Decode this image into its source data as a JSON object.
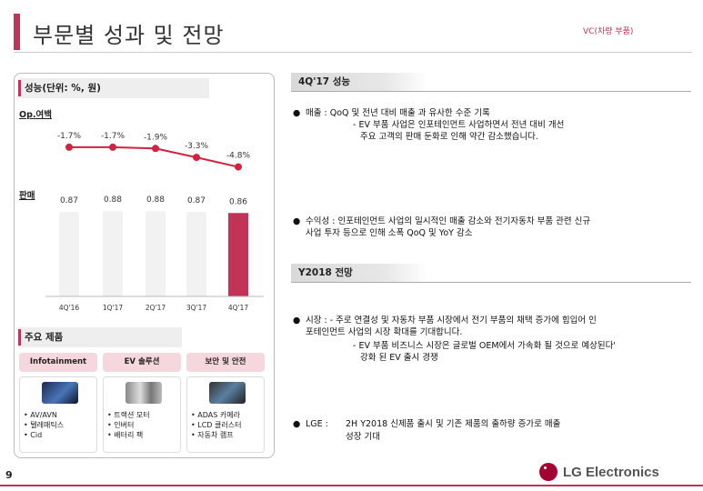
{
  "header": {
    "title": "부문별 성과 및 전망",
    "tag": "VC(차량 부품)"
  },
  "left": {
    "perf_title": "성능(단위: %, 원)",
    "margin_label": "Op.여백",
    "sales_label": "판매",
    "products_title": "주요 제품"
  },
  "chart_data": {
    "type": "bar",
    "categories": [
      "4Q'16",
      "1Q'17",
      "2Q'17",
      "3Q'17",
      "4Q'17"
    ],
    "values": [
      0.87,
      0.88,
      0.88,
      0.87,
      0.86
    ],
    "value_labels": [
      "0.87",
      "0.88",
      "0.88",
      "0.87",
      "0.86"
    ],
    "highlight_index": 4,
    "ylim": [
      0,
      0.9
    ],
    "line": {
      "name": "Op.여백",
      "values": [
        -1.7,
        -1.7,
        -1.9,
        -3.3,
        -4.8
      ],
      "labels": [
        "-1.7%",
        "-1.7%",
        "-1.9%",
        "-3.3%",
        "-4.8%"
      ]
    },
    "colors": {
      "bar": "#f2f2f2",
      "highlight": "#c23457",
      "line": "#d0233f"
    }
  },
  "products": [
    {
      "category": "Infotainment",
      "items": [
        "AV/AVN",
        "텔레매틱스",
        "Cid"
      ]
    },
    {
      "category": "EV 솔루션",
      "items": [
        "트랙션 모터",
        "인버터",
        "배터리 팩"
      ]
    },
    {
      "category": "보안 및 안전",
      "items": [
        "ADAS 카메라",
        "LCD 클러스터",
        "자동차 램프"
      ]
    }
  ],
  "right": {
    "q4_title": "4Q'17 성능",
    "b1_main": "매출 : QoQ 및 전년 대비 매출 과 유사한 수준 기록",
    "b1_sub1": "- EV 부품 사업은 인포테인먼트 사업하면서 전년 대비 개선",
    "b1_sub2": "주요 고객의 판매 둔화로 인해 약간 감소했습니다.",
    "b2_line1": "수익성 : 인포테인먼트 사업의 일시적인 매출 감소와 전기자동차 부품 관련 신규",
    "b2_line2": "사업 투자 등으로 인해 소폭 QoQ 및 YoY 감소",
    "y2018_title": "Y2018 전망",
    "b3_line1": "시장 : - 주로 연결성 및 자동차 부품 시장에서 전기 부품의 채택 증가에 힘입어 인",
    "b3_line2": "포테인먼트 사업의 시장 확대를 기대합니다.",
    "b3_sub1": "- EV 부품 비즈니스 시장은 글로벌 OEM에서 가속화 될 것으로 예상된다'",
    "b3_sub2": "강화 된 EV 출시 경쟁",
    "b4_label": "LGE :",
    "b4_line1": "2H Y2018 신제품 출시 및 기존 제품의 출하량 증가로 매출",
    "b4_line2": "성장 기대"
  },
  "footer": {
    "page": "9",
    "logo": "LG Electronics"
  }
}
